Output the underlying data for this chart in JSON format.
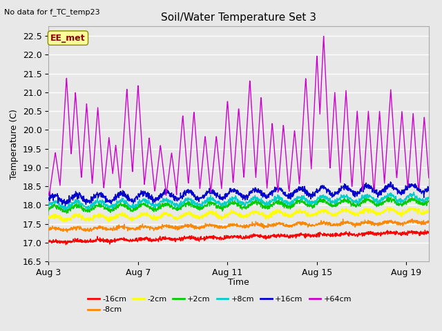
{
  "title": "Soil/Water Temperature Set 3",
  "subtitle": "No data for f_TC_temp23",
  "xlabel": "Time",
  "ylabel": "Temperature (C)",
  "ylim": [
    16.5,
    22.75
  ],
  "xlim_days": [
    0,
    17
  ],
  "x_ticks_labels": [
    "Aug 3",
    "Aug 7",
    "Aug 11",
    "Aug 15",
    "Aug 19"
  ],
  "x_ticks_positions": [
    0,
    4,
    8,
    12,
    16
  ],
  "yticks": [
    16.5,
    17.0,
    17.5,
    18.0,
    18.5,
    19.0,
    19.5,
    20.0,
    20.5,
    21.0,
    21.5,
    22.0,
    22.5
  ],
  "legend_label": "EE_met",
  "series_colors": {
    "m16cm": "#ff0000",
    "m8cm": "#ff8800",
    "m2cm": "#ffff00",
    "p2cm": "#00cc00",
    "p8cm": "#00cccc",
    "p16cm": "#0000cc",
    "p64cm": "#cc00cc"
  },
  "series_labels": [
    "-16cm",
    "-8cm",
    "-2cm",
    "+2cm",
    "+8cm",
    "+16cm",
    "+64cm"
  ],
  "plot_bg_color": "#e8e8e8",
  "fig_bg_color": "#e8e8e8",
  "grid_color": "#ffffff",
  "annotation_box_color": "#ffff99",
  "annotation_text_color": "#880000"
}
